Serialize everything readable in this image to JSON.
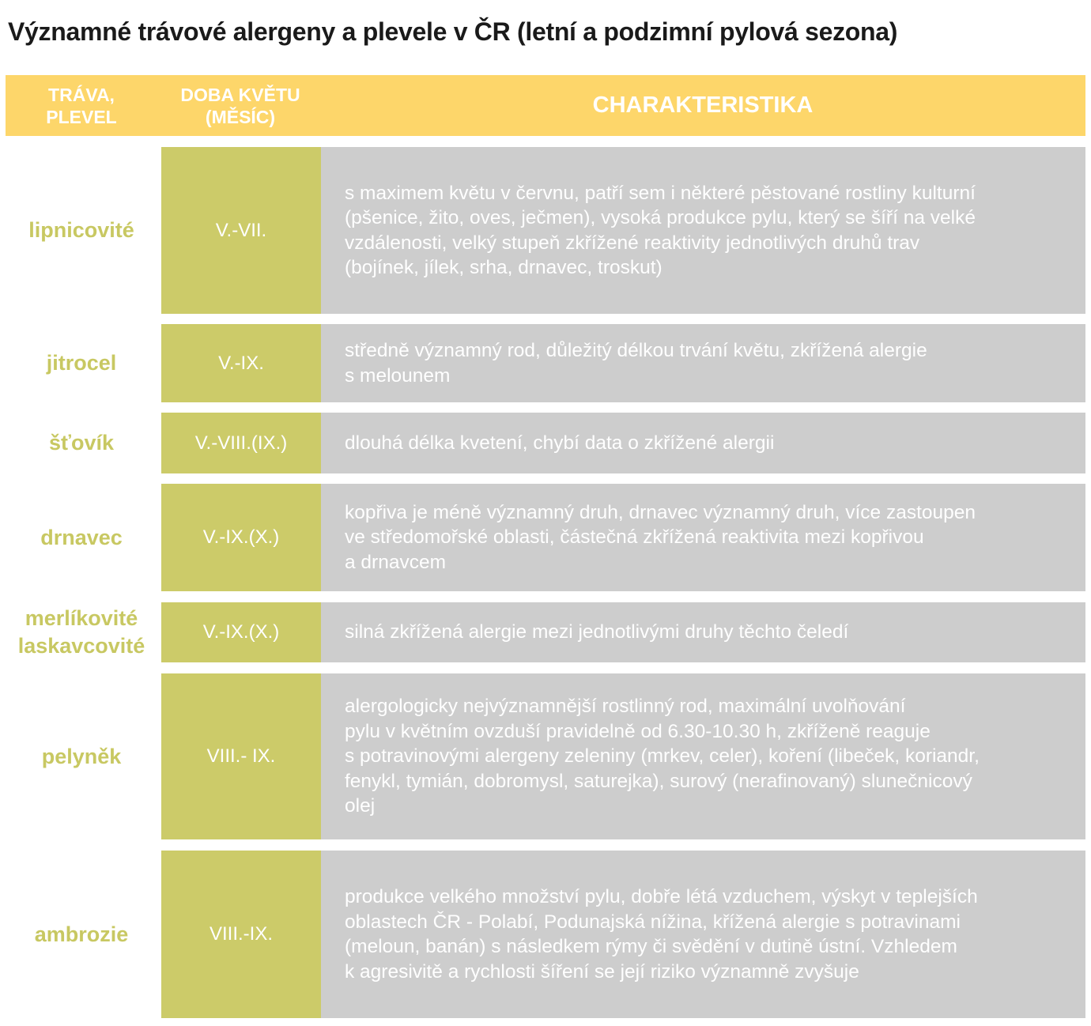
{
  "title": "Významné trávové alergeny a plevele v ČR (letní a podzimní pylová sezona)",
  "headers": {
    "col1": "TRÁVA,\nPLEVEL",
    "col2": "DOBA KVĚTU\n(MĚSÍC)",
    "col3": "CHARAKTERISTIKA"
  },
  "colors": {
    "header": "#fdd66a",
    "period_cell": "#cccb69",
    "description_cell": "#cdcdcd",
    "plant_name": "#c8c862"
  },
  "rows": [
    {
      "name": "lipnicovité",
      "period": "V.-VII.",
      "description": "s maximem květu v červnu, patří sem i některé pěstované rostliny kulturní\n(pšenice, žito, oves, ječmen), vysoká produkce pylu, který se šíří na velké\nvzdálenosti, velký stupeň zkřížené reaktivity jednotlivých druhů trav\n(bojínek, jílek, srha, drnavec, troskut)"
    },
    {
      "name": "jitrocel",
      "period": "V.-IX.",
      "description": "středně významný rod, důležitý délkou trvání květu, zkřížená alergie\ns melounem"
    },
    {
      "name": "šťovík",
      "period": "V.-VIII.(IX.)",
      "description": "dlouhá délka kvetení, chybí data o zkřížené alergii"
    },
    {
      "name": "drnavec",
      "period": "V.-IX.(X.)",
      "description": "kopřiva je méně významný druh, drnavec významný druh, více zastoupen\nve středomořské oblasti, částečná zkřížená reaktivita mezi kopřivou\na drnavcem"
    },
    {
      "name": "merlíkovité\nlaskavcovité",
      "period": "V.-IX.(X.)",
      "description": "silná zkřížená alergie mezi jednotlivými druhy těchto čeledí"
    },
    {
      "name": "pelyněk",
      "period": "VIII.- IX.",
      "description": "alergologicky nejvýznamnější rostlinný rod, maximální uvolňování\npylu v květním ovzduší pravidelně od 6.30-10.30 h, zkříženě reaguje\ns potravinovými alergeny zeleniny (mrkev, celer), koření (libeček, koriandr,\nfenykl, tymián, dobromysl, saturejka), surový (nerafinovaný) slunečnicový\nolej"
    },
    {
      "name": "ambrozie",
      "period": "VIII.-IX.",
      "description": "produkce velkého množství pylu, dobře létá vzduchem, výskyt v teplejších\noblastech ČR - Polabí, Podunajská nížina, křížená alergie s potravinami\n(meloun, banán) s následkem rýmy či svědění v dutině ústní. Vzhledem\nk agresivitě a rychlosti šíření se její riziko významně zvyšuje"
    }
  ]
}
